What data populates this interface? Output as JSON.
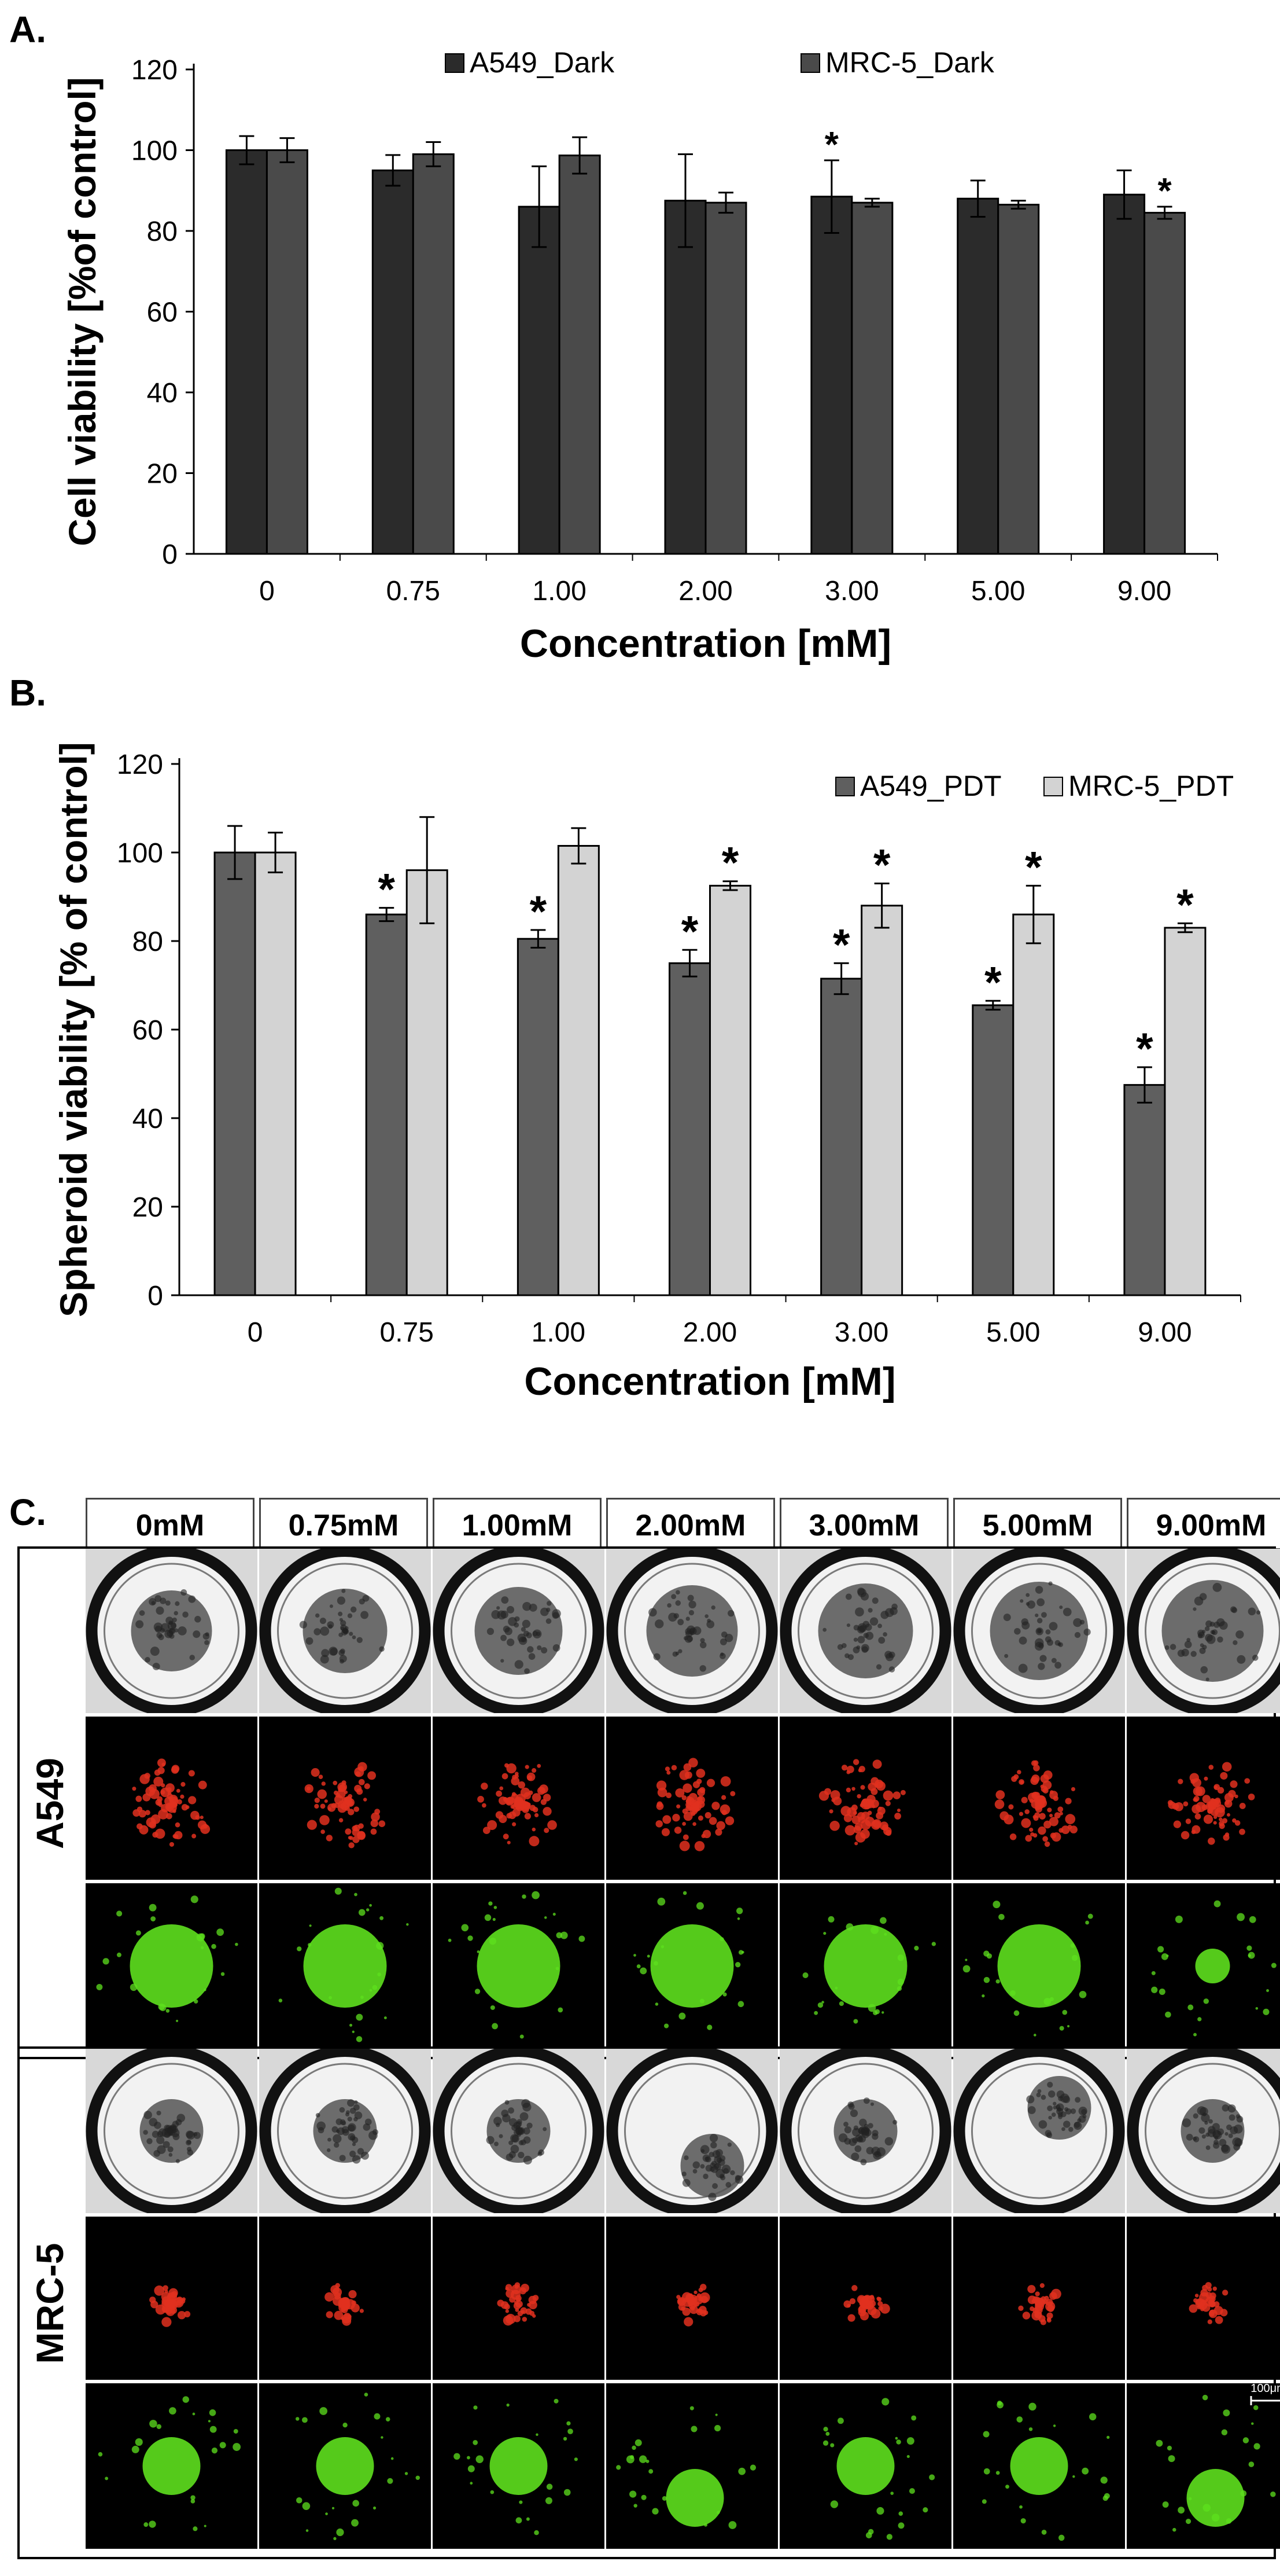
{
  "panel_labels": {
    "a": "A.",
    "b": "B.",
    "c": "C."
  },
  "chart_data": [
    {
      "type": "bar",
      "panel": "A.",
      "title": "",
      "xlabel": "Concentration [mM]",
      "ylabel": "Cell viability [%of control]",
      "ylim": [
        0,
        120
      ],
      "yticks": [
        "0",
        "20",
        "40",
        "60",
        "80",
        "100",
        "120"
      ],
      "grid": false,
      "legend_position": "top-center",
      "categories": [
        "0",
        "0.75",
        "1.00",
        "2.00",
        "3.00",
        "5.00",
        "9.00"
      ],
      "series": [
        {
          "name": "A549_Dark",
          "color": "#2b2b2b",
          "values": [
            100,
            95,
            86,
            87.5,
            88.5,
            88,
            89
          ],
          "errors": [
            3.5,
            3.8,
            10,
            11.5,
            9,
            4.5,
            6
          ],
          "significant": [
            false,
            false,
            false,
            false,
            true,
            false,
            false
          ]
        },
        {
          "name": "MRC-5_Dark",
          "color": "#4a4a4a",
          "values": [
            100,
            99,
            98.7,
            87,
            87,
            86.5,
            84.5
          ],
          "errors": [
            3,
            3,
            4.5,
            2.5,
            1,
            1,
            1.5
          ],
          "significant": [
            false,
            false,
            false,
            false,
            false,
            false,
            true
          ]
        }
      ],
      "significance_marker": "*"
    },
    {
      "type": "bar",
      "panel": "B.",
      "title": "",
      "xlabel": "Concentration [mM]",
      "ylabel": "Spheroid viability [% of control]",
      "ylim": [
        0,
        120
      ],
      "yticks": [
        "0",
        "20",
        "40",
        "60",
        "80",
        "100",
        "120"
      ],
      "grid": false,
      "legend_position": "top-right",
      "categories": [
        "0",
        "0.75",
        "1.00",
        "2.00",
        "3.00",
        "5.00",
        "9.00"
      ],
      "series": [
        {
          "name": "A549_PDT",
          "color": "#5f5f5f",
          "values": [
            100,
            86,
            80.5,
            75,
            71.5,
            65.5,
            47.5
          ],
          "errors": [
            6,
            1.5,
            2,
            3,
            3.5,
            1,
            4
          ],
          "significant": [
            false,
            true,
            true,
            true,
            true,
            true,
            true
          ]
        },
        {
          "name": "MRC-5_PDT",
          "color": "#d3d3d3",
          "values": [
            100,
            96,
            101.5,
            92.5,
            88,
            86,
            83
          ],
          "errors": [
            4.5,
            12,
            4,
            1,
            5,
            6.5,
            1
          ],
          "significant": [
            false,
            false,
            false,
            true,
            true,
            true,
            true
          ]
        }
      ],
      "significance_marker": "*"
    }
  ],
  "panel_c": {
    "concentrations": [
      "0mM",
      "0.75mM",
      "1.00mM",
      "2.00mM",
      "3.00mM",
      "5.00mM",
      "9.00mM"
    ],
    "cell_lines": [
      "A549",
      "MRC-5"
    ],
    "scale_bar_label": "100μm",
    "image_rows": [
      "brightfield",
      "red fluorescence",
      "green fluorescence"
    ],
    "colors": {
      "red_stain": "#e0301e",
      "green_stain": "#5ee01e"
    }
  }
}
